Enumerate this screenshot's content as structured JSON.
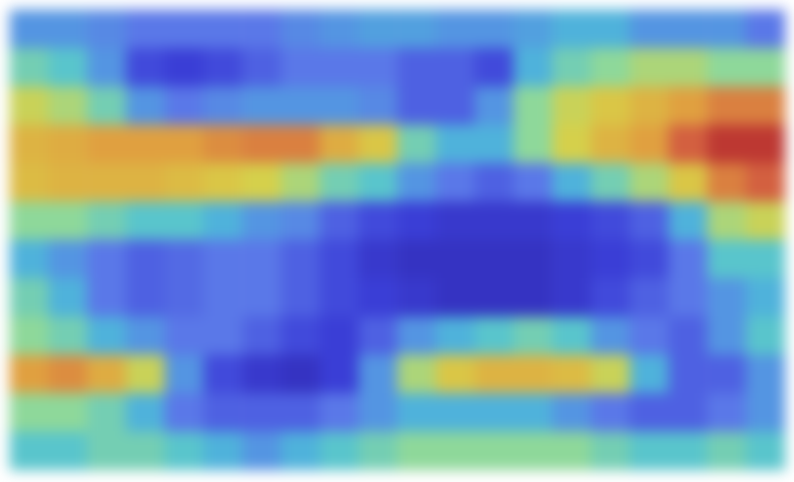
{
  "chart_data": {
    "type": "heatmap",
    "cells": [
      [
        0.3,
        0.3,
        0.28,
        0.25,
        0.25,
        0.25,
        0.25,
        0.28,
        0.3,
        0.32,
        0.32,
        0.3,
        0.3,
        0.32,
        0.35,
        0.35,
        0.3,
        0.3,
        0.3,
        0.25
      ],
      [
        0.45,
        0.4,
        0.3,
        0.15,
        0.12,
        0.15,
        0.2,
        0.25,
        0.25,
        0.25,
        0.2,
        0.2,
        0.15,
        0.35,
        0.45,
        0.5,
        0.55,
        0.55,
        0.5,
        0.5
      ],
      [
        0.6,
        0.55,
        0.45,
        0.3,
        0.25,
        0.28,
        0.3,
        0.3,
        0.3,
        0.28,
        0.2,
        0.2,
        0.3,
        0.5,
        0.6,
        0.65,
        0.7,
        0.75,
        0.8,
        0.8
      ],
      [
        0.7,
        0.72,
        0.75,
        0.75,
        0.75,
        0.78,
        0.8,
        0.8,
        0.72,
        0.65,
        0.45,
        0.35,
        0.35,
        0.5,
        0.62,
        0.7,
        0.75,
        0.85,
        0.95,
        0.95
      ],
      [
        0.68,
        0.7,
        0.7,
        0.7,
        0.68,
        0.65,
        0.62,
        0.55,
        0.45,
        0.4,
        0.3,
        0.25,
        0.2,
        0.25,
        0.35,
        0.45,
        0.55,
        0.65,
        0.8,
        0.85
      ],
      [
        0.5,
        0.5,
        0.45,
        0.4,
        0.4,
        0.35,
        0.3,
        0.28,
        0.2,
        0.15,
        0.12,
        0.1,
        0.1,
        0.1,
        0.12,
        0.15,
        0.2,
        0.35,
        0.55,
        0.6
      ],
      [
        0.35,
        0.3,
        0.25,
        0.2,
        0.22,
        0.25,
        0.25,
        0.2,
        0.15,
        0.1,
        0.08,
        0.08,
        0.08,
        0.08,
        0.1,
        0.12,
        0.15,
        0.25,
        0.4,
        0.4
      ],
      [
        0.45,
        0.35,
        0.25,
        0.2,
        0.22,
        0.25,
        0.25,
        0.2,
        0.15,
        0.12,
        0.1,
        0.08,
        0.08,
        0.08,
        0.1,
        0.15,
        0.2,
        0.25,
        0.3,
        0.35
      ],
      [
        0.5,
        0.45,
        0.35,
        0.3,
        0.25,
        0.25,
        0.2,
        0.15,
        0.12,
        0.2,
        0.3,
        0.35,
        0.4,
        0.45,
        0.4,
        0.3,
        0.25,
        0.2,
        0.3,
        0.4
      ],
      [
        0.75,
        0.78,
        0.72,
        0.6,
        0.3,
        0.15,
        0.1,
        0.08,
        0.12,
        0.3,
        0.55,
        0.65,
        0.7,
        0.7,
        0.68,
        0.6,
        0.35,
        0.2,
        0.2,
        0.3
      ],
      [
        0.5,
        0.5,
        0.45,
        0.35,
        0.25,
        0.2,
        0.2,
        0.2,
        0.25,
        0.3,
        0.35,
        0.35,
        0.35,
        0.35,
        0.3,
        0.25,
        0.2,
        0.2,
        0.25,
        0.3
      ],
      [
        0.4,
        0.4,
        0.45,
        0.45,
        0.4,
        0.35,
        0.3,
        0.35,
        0.4,
        0.45,
        0.5,
        0.5,
        0.5,
        0.5,
        0.5,
        0.45,
        0.4,
        0.4,
        0.45,
        0.4
      ]
    ],
    "zlim": [
      0,
      1
    ],
    "tick_labels": false
  }
}
